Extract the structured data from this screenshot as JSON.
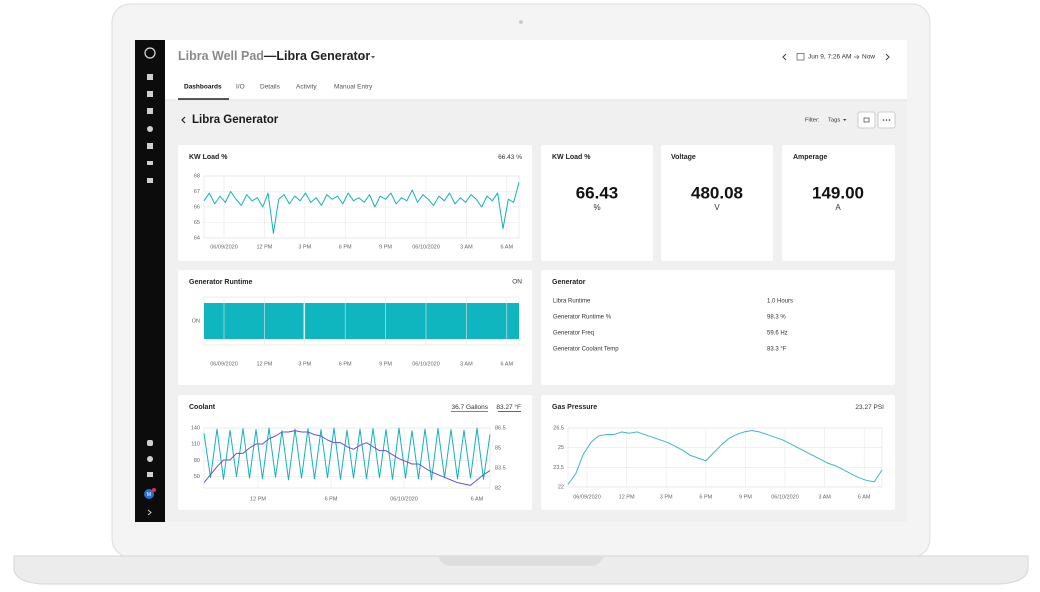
{
  "header": {
    "site": "Libra Well Pad",
    "title": "—Libra Generator",
    "time_from": "Jun 9, 7:26 AM",
    "time_to": "Now",
    "user_initial": "M"
  },
  "tabs": [
    "Dashboards",
    "I/O",
    "Details",
    "Activity",
    "Manual Entry"
  ],
  "dashboard": {
    "title": "Libra Generator",
    "filter_label": "Filter:",
    "filter_value": "Tags"
  },
  "widgets": {
    "kw_load_chart": {
      "title": "KW Load %",
      "value": "66.43",
      "unit": "%",
      "color": "#14b1bb",
      "ylim": [
        64,
        68
      ],
      "yticks": [
        64,
        65,
        66,
        67,
        68
      ],
      "x_labels": [
        "06/09/2020",
        "12 PM",
        "3 PM",
        "6 PM",
        "9 PM",
        "06/10/2020",
        "3 AM",
        "6 AM"
      ],
      "values": [
        66.4,
        66.9,
        66.2,
        66.7,
        66.3,
        67.0,
        66.5,
        66.1,
        66.8,
        66.4,
        66.6,
        66.0,
        66.9,
        64.3,
        66.5,
        66.8,
        66.2,
        66.7,
        66.4,
        66.9,
        66.3,
        66.6,
        66.1,
        66.8,
        66.5,
        66.7,
        66.2,
        66.9,
        66.4,
        66.6,
        66.3,
        66.8,
        66.0,
        66.7,
        66.5,
        66.9,
        66.2,
        66.6,
        66.4,
        67.1,
        66.3,
        66.8,
        66.5,
        66.1,
        66.7,
        66.4,
        66.9,
        66.2,
        66.6,
        66.3,
        66.8,
        66.5,
        66.0,
        66.7,
        66.4,
        66.9,
        64.6,
        66.5,
        66.3,
        67.6
      ]
    },
    "kw_load_stat": {
      "title": "KW Load %",
      "value": "66.43",
      "unit": "%"
    },
    "voltage_stat": {
      "title": "Voltage",
      "value": "480.08",
      "unit": "V"
    },
    "amperage_stat": {
      "title": "Amperage",
      "value": "149.00",
      "unit": "A"
    },
    "runtime": {
      "title": "Generator Runtime",
      "status": "ON",
      "state_label": "ON",
      "color": "#0fb5bf",
      "x_labels": [
        "06/09/2020",
        "12 PM",
        "3 PM",
        "6 PM",
        "9 PM",
        "06/10/2020",
        "3 AM",
        "6 AM"
      ]
    },
    "generator": {
      "title": "Generator",
      "rows": [
        [
          "Libra Runtime",
          "1.0 Hours"
        ],
        [
          "Generator Runtime %",
          "98.3 %"
        ],
        [
          "Generator Freq",
          "59.6 Hz"
        ],
        [
          "Generator Coolant Temp",
          "83.3 °F"
        ]
      ]
    },
    "coolant": {
      "title": "Coolant",
      "ylim": [
        40,
        140
      ],
      "yticks": [
        50,
        80,
        110,
        140
      ],
      "y2lim": [
        82,
        86.5
      ],
      "y2ticks": [
        82,
        83.5,
        85,
        86.5
      ],
      "x_labels": [
        "12 PM",
        "6 PM",
        "06/10/2020",
        "6 AM"
      ],
      "series": [
        {
          "name": "Gallons",
          "value": "36.7",
          "color": "#12b3bd",
          "values": [
            130,
            48,
            138,
            45,
            136,
            50,
            139,
            47,
            137,
            46,
            140,
            49,
            135,
            44,
            138,
            47,
            139,
            46,
            137,
            48,
            140,
            45,
            136,
            47,
            138,
            46,
            139,
            48,
            137,
            45,
            140,
            47,
            135,
            46,
            138,
            44,
            139,
            48,
            137,
            46,
            136,
            47,
            140,
            45,
            128
          ]
        },
        {
          "name": "°F",
          "value": "83.27",
          "color": "#6b4fd8",
          "axis": "y2",
          "values": [
            82.4,
            83.0,
            83.6,
            84.1,
            84.1,
            84.6,
            84.6,
            85.0,
            85.3,
            85.3,
            85.7,
            85.9,
            86.2,
            86.2,
            86.3,
            86.2,
            86.2,
            86.0,
            85.9,
            85.6,
            85.4,
            85.4,
            85.1,
            84.9,
            85.2,
            85.4,
            85.1,
            84.8,
            84.8,
            84.5,
            84.2,
            84.0,
            83.8,
            83.8,
            83.5,
            83.2,
            83.0,
            82.8,
            82.6,
            82.4,
            82.3,
            82.2,
            82.6,
            83.0,
            83.3
          ]
        }
      ]
    },
    "gas": {
      "title": "Gas Pressure",
      "value": "23.27",
      "unit": "PSI",
      "color": "#3cb8c6",
      "ylim": [
        22,
        26.5
      ],
      "yticks": [
        22,
        23.5,
        25,
        26.5
      ],
      "x_labels": [
        "06/09/2020",
        "12 PM",
        "3 PM",
        "6 PM",
        "9 PM",
        "06/10/2020",
        "3 AM",
        "6 AM"
      ],
      "values": [
        22.2,
        23.0,
        24.5,
        25.4,
        25.9,
        26.0,
        26.0,
        26.2,
        26.1,
        26.2,
        26.0,
        25.8,
        25.6,
        25.4,
        25.1,
        24.8,
        24.4,
        24.2,
        24.0,
        24.6,
        25.2,
        25.7,
        26.0,
        26.2,
        26.3,
        26.2,
        26.0,
        25.8,
        25.6,
        25.3,
        25.0,
        24.7,
        24.4,
        24.1,
        23.8,
        23.6,
        23.3,
        23.0,
        22.7,
        22.5,
        22.4,
        23.3
      ]
    }
  }
}
